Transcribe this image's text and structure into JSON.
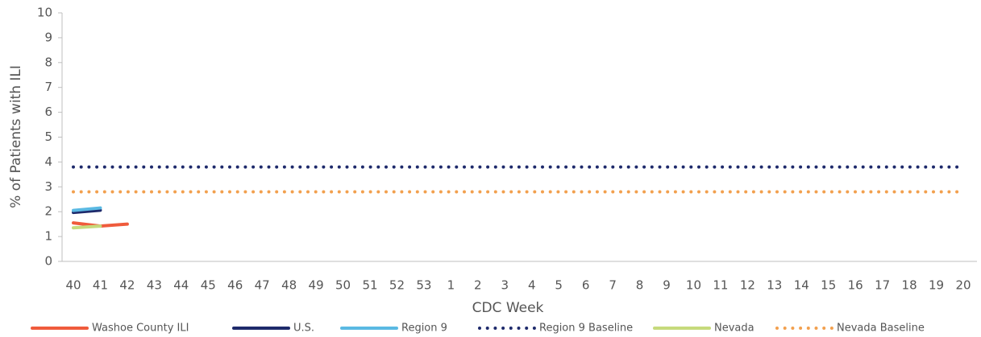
{
  "chart_data": {
    "type": "line",
    "xlabel": "CDC Week",
    "ylabel": "% of Patients with ILI",
    "categories": [
      "40",
      "41",
      "42",
      "43",
      "44",
      "45",
      "46",
      "47",
      "48",
      "49",
      "50",
      "51",
      "52",
      "53",
      "1",
      "2",
      "3",
      "4",
      "5",
      "6",
      "7",
      "8",
      "9",
      "10",
      "11",
      "12",
      "13",
      "14",
      "15",
      "16",
      "17",
      "18",
      "19",
      "20"
    ],
    "ylim": [
      0,
      10
    ],
    "yticks": [
      0,
      1,
      2,
      3,
      4,
      5,
      6,
      7,
      8,
      9,
      10
    ],
    "grid": false,
    "legend": "bottom",
    "series": [
      {
        "name": "Washoe County ILI",
        "color": "#ef5b3c",
        "style": "solid",
        "values": [
          1.55,
          1.42,
          1.5,
          null,
          null,
          null,
          null,
          null,
          null,
          null,
          null,
          null,
          null,
          null,
          null,
          null,
          null,
          null,
          null,
          null,
          null,
          null,
          null,
          null,
          null,
          null,
          null,
          null,
          null,
          null,
          null,
          null,
          null,
          null
        ]
      },
      {
        "name": "U.S.",
        "color": "#1e2a6b",
        "style": "solid",
        "values": [
          1.97,
          2.06,
          null,
          null,
          null,
          null,
          null,
          null,
          null,
          null,
          null,
          null,
          null,
          null,
          null,
          null,
          null,
          null,
          null,
          null,
          null,
          null,
          null,
          null,
          null,
          null,
          null,
          null,
          null,
          null,
          null,
          null,
          null,
          null
        ]
      },
      {
        "name": "Region 9",
        "color": "#5ab9e3",
        "style": "solid",
        "values": [
          2.05,
          2.15,
          null,
          null,
          null,
          null,
          null,
          null,
          null,
          null,
          null,
          null,
          null,
          null,
          null,
          null,
          null,
          null,
          null,
          null,
          null,
          null,
          null,
          null,
          null,
          null,
          null,
          null,
          null,
          null,
          null,
          null,
          null,
          null
        ]
      },
      {
        "name": "Region 9 Baseline",
        "color": "#1e2a6b",
        "style": "dotted",
        "values": [
          3.8,
          3.8,
          3.8,
          3.8,
          3.8,
          3.8,
          3.8,
          3.8,
          3.8,
          3.8,
          3.8,
          3.8,
          3.8,
          3.8,
          3.8,
          3.8,
          3.8,
          3.8,
          3.8,
          3.8,
          3.8,
          3.8,
          3.8,
          3.8,
          3.8,
          3.8,
          3.8,
          3.8,
          3.8,
          3.8,
          3.8,
          3.8,
          3.8,
          3.8
        ]
      },
      {
        "name": "Nevada",
        "color": "#c6da7c",
        "style": "solid",
        "values": [
          1.35,
          1.42,
          null,
          null,
          null,
          null,
          null,
          null,
          null,
          null,
          null,
          null,
          null,
          null,
          null,
          null,
          null,
          null,
          null,
          null,
          null,
          null,
          null,
          null,
          null,
          null,
          null,
          null,
          null,
          null,
          null,
          null,
          null,
          null
        ]
      },
      {
        "name": "Nevada Baseline",
        "color": "#f2a04e",
        "style": "dotted",
        "values": [
          2.8,
          2.8,
          2.8,
          2.8,
          2.8,
          2.8,
          2.8,
          2.8,
          2.8,
          2.8,
          2.8,
          2.8,
          2.8,
          2.8,
          2.8,
          2.8,
          2.8,
          2.8,
          2.8,
          2.8,
          2.8,
          2.8,
          2.8,
          2.8,
          2.8,
          2.8,
          2.8,
          2.8,
          2.8,
          2.8,
          2.8,
          2.8,
          2.8,
          2.8
        ]
      }
    ]
  }
}
